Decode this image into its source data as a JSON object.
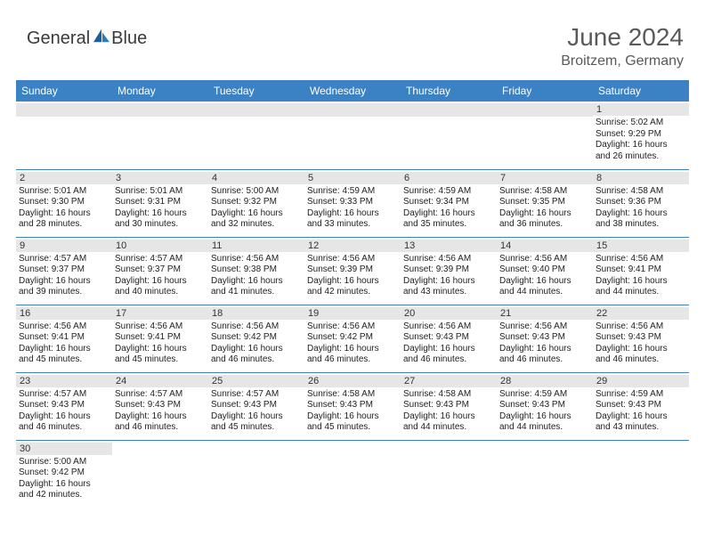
{
  "brand": {
    "name1": "General",
    "name2": "Blue"
  },
  "title": "June 2024",
  "subtitle": "Broitzem, Germany",
  "colors": {
    "header_bg": "#3b82c4",
    "header_text": "#ffffff",
    "daynum_bg": "#e6e6e6",
    "rule": "#3b82c4",
    "brand_gray": "#3a3a3a",
    "brand_blue": "#2b7bb9"
  },
  "typography": {
    "title_fontsize": 28,
    "subtitle_fontsize": 16,
    "header_fontsize": 12,
    "daynum_fontsize": 11,
    "body_fontsize": 10
  },
  "day_headers": [
    "Sunday",
    "Monday",
    "Tuesday",
    "Wednesday",
    "Thursday",
    "Friday",
    "Saturday"
  ],
  "weeks": [
    [
      {
        "n": "",
        "sr": "",
        "ss": "",
        "d1": "",
        "d2": ""
      },
      {
        "n": "",
        "sr": "",
        "ss": "",
        "d1": "",
        "d2": ""
      },
      {
        "n": "",
        "sr": "",
        "ss": "",
        "d1": "",
        "d2": ""
      },
      {
        "n": "",
        "sr": "",
        "ss": "",
        "d1": "",
        "d2": ""
      },
      {
        "n": "",
        "sr": "",
        "ss": "",
        "d1": "",
        "d2": ""
      },
      {
        "n": "",
        "sr": "",
        "ss": "",
        "d1": "",
        "d2": ""
      },
      {
        "n": "1",
        "sr": "Sunrise: 5:02 AM",
        "ss": "Sunset: 9:29 PM",
        "d1": "Daylight: 16 hours",
        "d2": "and 26 minutes."
      }
    ],
    [
      {
        "n": "2",
        "sr": "Sunrise: 5:01 AM",
        "ss": "Sunset: 9:30 PM",
        "d1": "Daylight: 16 hours",
        "d2": "and 28 minutes."
      },
      {
        "n": "3",
        "sr": "Sunrise: 5:01 AM",
        "ss": "Sunset: 9:31 PM",
        "d1": "Daylight: 16 hours",
        "d2": "and 30 minutes."
      },
      {
        "n": "4",
        "sr": "Sunrise: 5:00 AM",
        "ss": "Sunset: 9:32 PM",
        "d1": "Daylight: 16 hours",
        "d2": "and 32 minutes."
      },
      {
        "n": "5",
        "sr": "Sunrise: 4:59 AM",
        "ss": "Sunset: 9:33 PM",
        "d1": "Daylight: 16 hours",
        "d2": "and 33 minutes."
      },
      {
        "n": "6",
        "sr": "Sunrise: 4:59 AM",
        "ss": "Sunset: 9:34 PM",
        "d1": "Daylight: 16 hours",
        "d2": "and 35 minutes."
      },
      {
        "n": "7",
        "sr": "Sunrise: 4:58 AM",
        "ss": "Sunset: 9:35 PM",
        "d1": "Daylight: 16 hours",
        "d2": "and 36 minutes."
      },
      {
        "n": "8",
        "sr": "Sunrise: 4:58 AM",
        "ss": "Sunset: 9:36 PM",
        "d1": "Daylight: 16 hours",
        "d2": "and 38 minutes."
      }
    ],
    [
      {
        "n": "9",
        "sr": "Sunrise: 4:57 AM",
        "ss": "Sunset: 9:37 PM",
        "d1": "Daylight: 16 hours",
        "d2": "and 39 minutes."
      },
      {
        "n": "10",
        "sr": "Sunrise: 4:57 AM",
        "ss": "Sunset: 9:37 PM",
        "d1": "Daylight: 16 hours",
        "d2": "and 40 minutes."
      },
      {
        "n": "11",
        "sr": "Sunrise: 4:56 AM",
        "ss": "Sunset: 9:38 PM",
        "d1": "Daylight: 16 hours",
        "d2": "and 41 minutes."
      },
      {
        "n": "12",
        "sr": "Sunrise: 4:56 AM",
        "ss": "Sunset: 9:39 PM",
        "d1": "Daylight: 16 hours",
        "d2": "and 42 minutes."
      },
      {
        "n": "13",
        "sr": "Sunrise: 4:56 AM",
        "ss": "Sunset: 9:39 PM",
        "d1": "Daylight: 16 hours",
        "d2": "and 43 minutes."
      },
      {
        "n": "14",
        "sr": "Sunrise: 4:56 AM",
        "ss": "Sunset: 9:40 PM",
        "d1": "Daylight: 16 hours",
        "d2": "and 44 minutes."
      },
      {
        "n": "15",
        "sr": "Sunrise: 4:56 AM",
        "ss": "Sunset: 9:41 PM",
        "d1": "Daylight: 16 hours",
        "d2": "and 44 minutes."
      }
    ],
    [
      {
        "n": "16",
        "sr": "Sunrise: 4:56 AM",
        "ss": "Sunset: 9:41 PM",
        "d1": "Daylight: 16 hours",
        "d2": "and 45 minutes."
      },
      {
        "n": "17",
        "sr": "Sunrise: 4:56 AM",
        "ss": "Sunset: 9:41 PM",
        "d1": "Daylight: 16 hours",
        "d2": "and 45 minutes."
      },
      {
        "n": "18",
        "sr": "Sunrise: 4:56 AM",
        "ss": "Sunset: 9:42 PM",
        "d1": "Daylight: 16 hours",
        "d2": "and 46 minutes."
      },
      {
        "n": "19",
        "sr": "Sunrise: 4:56 AM",
        "ss": "Sunset: 9:42 PM",
        "d1": "Daylight: 16 hours",
        "d2": "and 46 minutes."
      },
      {
        "n": "20",
        "sr": "Sunrise: 4:56 AM",
        "ss": "Sunset: 9:43 PM",
        "d1": "Daylight: 16 hours",
        "d2": "and 46 minutes."
      },
      {
        "n": "21",
        "sr": "Sunrise: 4:56 AM",
        "ss": "Sunset: 9:43 PM",
        "d1": "Daylight: 16 hours",
        "d2": "and 46 minutes."
      },
      {
        "n": "22",
        "sr": "Sunrise: 4:56 AM",
        "ss": "Sunset: 9:43 PM",
        "d1": "Daylight: 16 hours",
        "d2": "and 46 minutes."
      }
    ],
    [
      {
        "n": "23",
        "sr": "Sunrise: 4:57 AM",
        "ss": "Sunset: 9:43 PM",
        "d1": "Daylight: 16 hours",
        "d2": "and 46 minutes."
      },
      {
        "n": "24",
        "sr": "Sunrise: 4:57 AM",
        "ss": "Sunset: 9:43 PM",
        "d1": "Daylight: 16 hours",
        "d2": "and 46 minutes."
      },
      {
        "n": "25",
        "sr": "Sunrise: 4:57 AM",
        "ss": "Sunset: 9:43 PM",
        "d1": "Daylight: 16 hours",
        "d2": "and 45 minutes."
      },
      {
        "n": "26",
        "sr": "Sunrise: 4:58 AM",
        "ss": "Sunset: 9:43 PM",
        "d1": "Daylight: 16 hours",
        "d2": "and 45 minutes."
      },
      {
        "n": "27",
        "sr": "Sunrise: 4:58 AM",
        "ss": "Sunset: 9:43 PM",
        "d1": "Daylight: 16 hours",
        "d2": "and 44 minutes."
      },
      {
        "n": "28",
        "sr": "Sunrise: 4:59 AM",
        "ss": "Sunset: 9:43 PM",
        "d1": "Daylight: 16 hours",
        "d2": "and 44 minutes."
      },
      {
        "n": "29",
        "sr": "Sunrise: 4:59 AM",
        "ss": "Sunset: 9:43 PM",
        "d1": "Daylight: 16 hours",
        "d2": "and 43 minutes."
      }
    ],
    [
      {
        "n": "30",
        "sr": "Sunrise: 5:00 AM",
        "ss": "Sunset: 9:42 PM",
        "d1": "Daylight: 16 hours",
        "d2": "and 42 minutes."
      },
      {
        "n": "",
        "sr": "",
        "ss": "",
        "d1": "",
        "d2": ""
      },
      {
        "n": "",
        "sr": "",
        "ss": "",
        "d1": "",
        "d2": ""
      },
      {
        "n": "",
        "sr": "",
        "ss": "",
        "d1": "",
        "d2": ""
      },
      {
        "n": "",
        "sr": "",
        "ss": "",
        "d1": "",
        "d2": ""
      },
      {
        "n": "",
        "sr": "",
        "ss": "",
        "d1": "",
        "d2": ""
      },
      {
        "n": "",
        "sr": "",
        "ss": "",
        "d1": "",
        "d2": ""
      }
    ]
  ]
}
